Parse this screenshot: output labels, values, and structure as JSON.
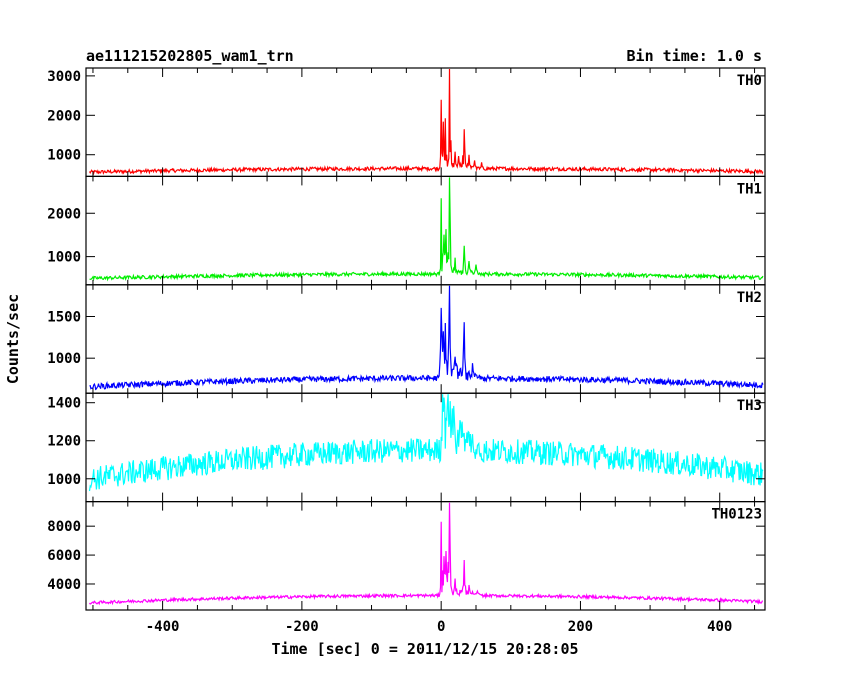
{
  "header": {
    "title": "ae111215202805_wam1_trn",
    "bin_time": "Bin time: 1.0 s"
  },
  "chart_data": {
    "type": "line",
    "xlabel": "Time [sec] 0 = 2011/12/15 20:28:05",
    "ylabel": "Counts/sec",
    "xlim": [
      -510,
      465
    ],
    "x_ticks": [
      -400,
      -200,
      0,
      200,
      400
    ],
    "panels": [
      {
        "name": "TH0",
        "color": "#ff0000",
        "ylim": [
          450,
          3200
        ],
        "yticks": [
          1000,
          2000,
          3000
        ],
        "baseline_edge": 560,
        "baseline_center": 650,
        "noise": 45,
        "peaks": [
          [
            0,
            2300
          ],
          [
            3,
            1700
          ],
          [
            6,
            1800
          ],
          [
            12,
            3200
          ],
          [
            20,
            1000
          ],
          [
            25,
            900
          ],
          [
            33,
            1600
          ],
          [
            40,
            950
          ],
          [
            48,
            850
          ],
          [
            58,
            800
          ]
        ]
      },
      {
        "name": "TH1",
        "color": "#00ee00",
        "ylim": [
          350,
          2850
        ],
        "yticks": [
          1000,
          2000
        ],
        "baseline_edge": 500,
        "baseline_center": 600,
        "noise": 40,
        "peaks": [
          [
            0,
            2200
          ],
          [
            4,
            1400
          ],
          [
            7,
            1500
          ],
          [
            12,
            2850
          ],
          [
            20,
            900
          ],
          [
            33,
            1250
          ],
          [
            40,
            850
          ],
          [
            50,
            800
          ]
        ]
      },
      {
        "name": "TH2",
        "color": "#0000ff",
        "ylim": [
          580,
          1880
        ],
        "yticks": [
          1000,
          1500
        ],
        "baseline_edge": 660,
        "baseline_center": 760,
        "noise": 35,
        "peaks": [
          [
            0,
            1600
          ],
          [
            3,
            1200
          ],
          [
            6,
            1300
          ],
          [
            12,
            1870
          ],
          [
            20,
            1000
          ],
          [
            33,
            1350
          ],
          [
            45,
            900
          ]
        ]
      },
      {
        "name": "TH3",
        "color": "#00ffff",
        "ylim": [
          880,
          1450
        ],
        "yticks": [
          1000,
          1200,
          1400
        ],
        "baseline_edge": 1000,
        "baseline_center": 1150,
        "noise": 65,
        "peaks": [
          [
            2,
            1450
          ],
          [
            10,
            1450
          ],
          [
            18,
            1350
          ],
          [
            30,
            1300
          ]
        ]
      },
      {
        "name": "TH0123",
        "color": "#ff00ff",
        "ylim": [
          2200,
          9700
        ],
        "yticks": [
          4000,
          6000,
          8000
        ],
        "baseline_edge": 2700,
        "baseline_center": 3200,
        "noise": 100,
        "peaks": [
          [
            0,
            7600
          ],
          [
            4,
            5800
          ],
          [
            7,
            6000
          ],
          [
            12,
            9600
          ],
          [
            20,
            4000
          ],
          [
            33,
            5400
          ],
          [
            40,
            3800
          ],
          [
            52,
            3500
          ]
        ]
      }
    ]
  }
}
